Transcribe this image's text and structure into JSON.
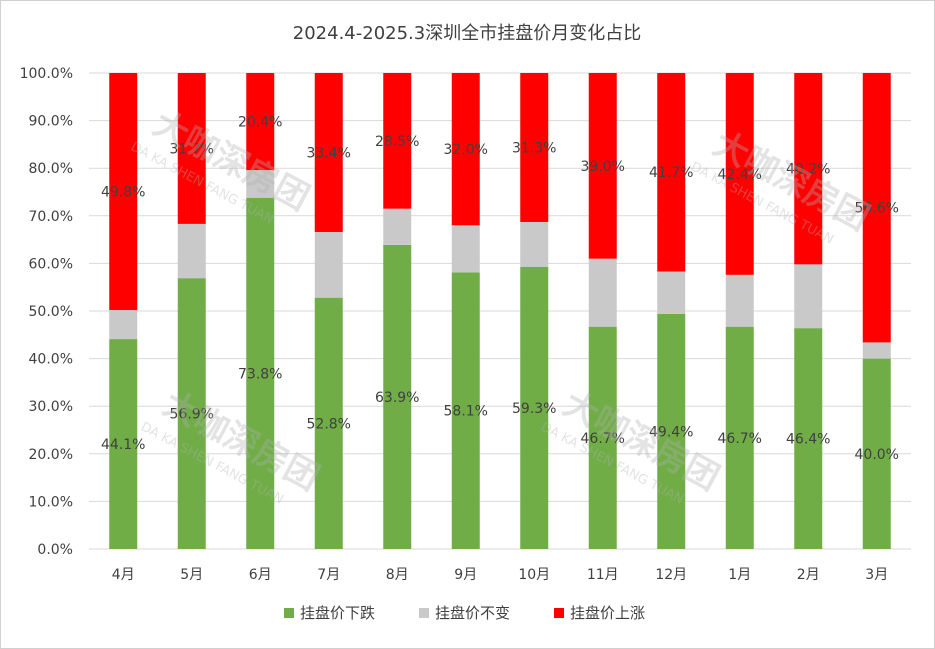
{
  "chart_data": {
    "type": "bar",
    "stacked": true,
    "title": "2024.4-2025.3深圳全市挂盘价月变化占比",
    "categories": [
      "4月",
      "5月",
      "6月",
      "7月",
      "8月",
      "9月",
      "10月",
      "11月",
      "12月",
      "1月",
      "2月",
      "3月"
    ],
    "series": [
      {
        "name": "挂盘价下跌",
        "color": "#70ad47",
        "values": [
          44.1,
          56.9,
          73.8,
          52.8,
          63.9,
          58.1,
          59.3,
          46.7,
          49.4,
          46.7,
          46.4,
          40.0
        ],
        "labels": [
          "44.1%",
          "56.9%",
          "73.8%",
          "52.8%",
          "63.9%",
          "58.1%",
          "59.3%",
          "46.7%",
          "49.4%",
          "46.7%",
          "46.4%",
          "40.0%"
        ]
      },
      {
        "name": "挂盘价不变",
        "color": "#c9c9c9",
        "values": [
          6.1,
          11.4,
          5.8,
          13.8,
          7.6,
          9.9,
          9.4,
          14.3,
          8.9,
          10.9,
          13.4,
          3.4
        ],
        "labels": [
          "",
          "",
          "",
          "",
          "",
          "",
          "",
          "",
          "",
          "",
          "",
          ""
        ]
      },
      {
        "name": "挂盘价上涨",
        "color": "#ff0000",
        "values": [
          49.8,
          31.7,
          20.4,
          33.4,
          28.5,
          32.0,
          31.3,
          39.0,
          41.7,
          42.4,
          40.2,
          56.6
        ],
        "labels": [
          "49.8%",
          "31.7%",
          "20.4%",
          "33.4%",
          "28.5%",
          "32.0%",
          "31.3%",
          "39.0%",
          "41.7%",
          "42.4%",
          "40.2%",
          "56.6%"
        ]
      }
    ],
    "y_ticks": [
      "0.0%",
      "10.0%",
      "20.0%",
      "30.0%",
      "40.0%",
      "50.0%",
      "60.0%",
      "70.0%",
      "80.0%",
      "90.0%",
      "100.0%"
    ],
    "ylim": [
      0,
      100
    ],
    "grid": true,
    "legend_position": "bottom"
  },
  "watermark": {
    "logo_text": "大咖深房团",
    "pinyin": "DA KA SHEN FANG TUAN"
  }
}
